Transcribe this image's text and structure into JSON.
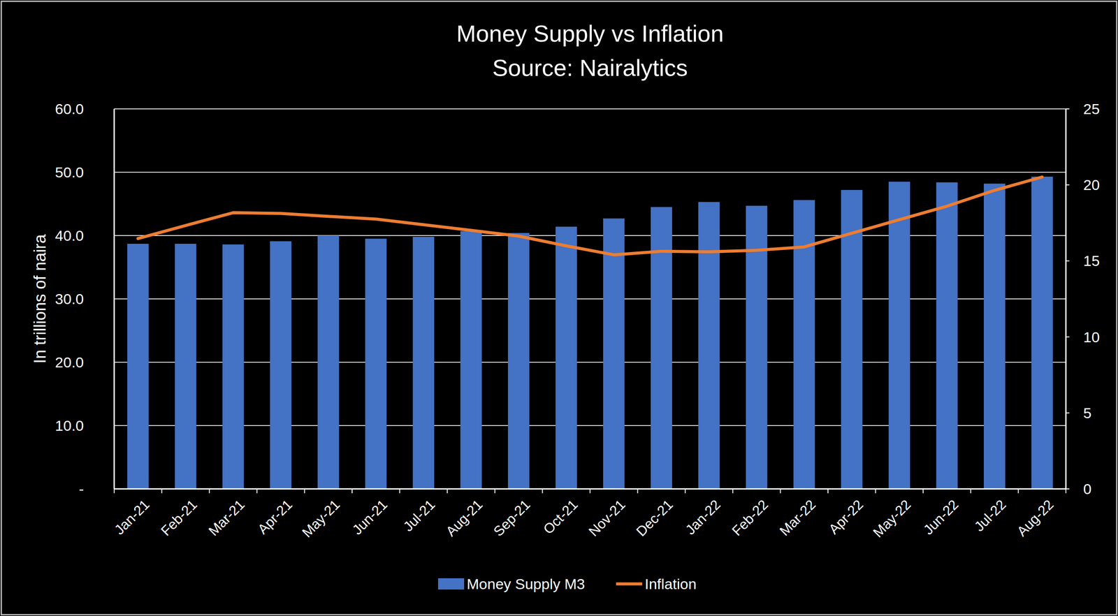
{
  "chart_data": {
    "type": "bar",
    "title": "Money Supply vs Inflation",
    "subtitle": "Source: Nairalytics",
    "y_label": "In trillions of naira",
    "categories": [
      "Jan-21",
      "Feb-21",
      "Mar-21",
      "Apr-21",
      "May-21",
      "Jun-21",
      "Jul-21",
      "Aug-21",
      "Sep-21",
      "Oct-21",
      "Nov-21",
      "Dec-21",
      "Jan-22",
      "Feb-22",
      "Mar-22",
      "Apr-22",
      "May-22",
      "Jun-22",
      "Jul-22",
      "Aug-22"
    ],
    "series": [
      {
        "name": "Money Supply M3",
        "type": "bar",
        "color": "#4472c4",
        "values": [
          38.7,
          38.7,
          38.6,
          39.1,
          40.0,
          39.5,
          39.8,
          40.7,
          40.4,
          41.4,
          42.7,
          44.5,
          45.3,
          44.7,
          45.6,
          47.2,
          48.5,
          48.4,
          48.2,
          49.3
        ]
      },
      {
        "name": "Inflation",
        "type": "line",
        "axis": "y2",
        "color": "#ed7d31",
        "values": [
          16.47,
          17.33,
          18.17,
          18.12,
          17.93,
          17.75,
          17.38,
          17.01,
          16.63,
          15.99,
          15.4,
          15.63,
          15.6,
          15.7,
          15.92,
          16.82,
          17.71,
          18.6,
          19.64,
          20.52
        ]
      }
    ],
    "ylim": [
      0,
      60
    ],
    "yticks": [
      {
        "value": 0,
        "label": "-"
      },
      {
        "value": 10,
        "label": "10.0"
      },
      {
        "value": 20,
        "label": "20.0"
      },
      {
        "value": 30,
        "label": "30.0"
      },
      {
        "value": 40,
        "label": "40.0"
      },
      {
        "value": 50,
        "label": "50.0"
      },
      {
        "value": 60,
        "label": "60.0"
      }
    ],
    "y2lim": [
      0,
      25
    ],
    "y2ticks": [
      0,
      5,
      10,
      15,
      20,
      25
    ],
    "grid": true,
    "legend": "bottom"
  }
}
